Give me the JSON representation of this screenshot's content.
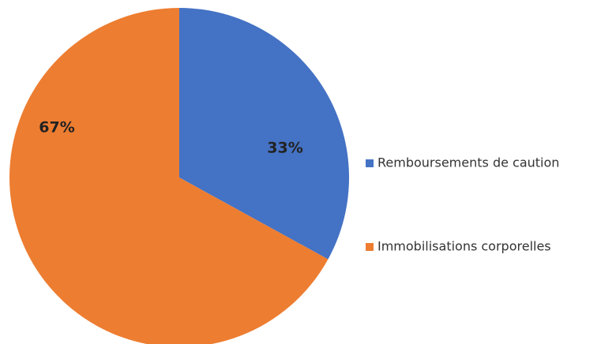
{
  "chart_data": {
    "type": "pie",
    "categories": [
      "Remboursements de caution",
      "Immobilisations corporelles"
    ],
    "values": [
      33,
      67
    ],
    "value_labels": [
      "33%",
      "67%"
    ],
    "colors": [
      "#4472c4",
      "#ed7d31"
    ],
    "legend": "right"
  }
}
